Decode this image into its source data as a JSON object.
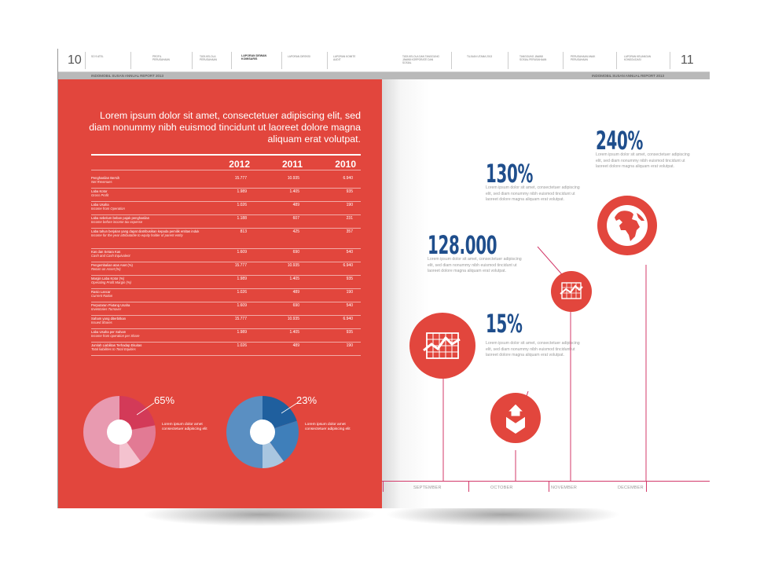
{
  "left_page": {
    "page_number": "10",
    "nav": [
      "SO 9 ATEL",
      "PROFIL PERUSAHAAN",
      "TATA KELOLA PERUSAHAAN",
      "LAPORAN DEWAN KOMISARIS",
      "LAPORAN DIREKSI",
      "LAPORAN KOMITE AUDIT"
    ],
    "band_text": "INDOMOBIL SUSAN ANNUAL REPORT 2013",
    "intro": "Lorem ipsum dolor sit amet, consectetuer adipiscing elit, sed diam nonummy nibh euismod tincidunt ut laoreet dolore magna aliquam erat volutpat.",
    "table": {
      "years": [
        "2012",
        "2011",
        "2010"
      ],
      "rows": [
        {
          "label": "Penghasilan Bersih",
          "sub": "Net Revenues",
          "v": [
            "15.777",
            "10.935",
            "6.940"
          ]
        },
        {
          "label": "Laba Kotor",
          "sub": "Gross Profit",
          "v": [
            "1.989",
            "1.405",
            "935"
          ]
        },
        {
          "label": "Laba Usaha",
          "sub": "Income from Operation",
          "v": [
            "1.026",
            "489",
            "190"
          ]
        },
        {
          "label": "Laba sebelum beban pajak penghasilan",
          "sub": "Income before income tax expense",
          "v": [
            "1.188",
            "607",
            "231"
          ]
        },
        {
          "label": "Laba tahun berjalan yang dapat diatribusikan kepada pemilik entitas induk",
          "sub": "Income for the year attributable to equity holder of parent entity",
          "v": [
            "813",
            "425",
            "357"
          ]
        },
        {
          "label": "Kas dan Setara Kas",
          "sub": "Cash and Cash Equivalent",
          "v": [
            "1.609",
            "690",
            "540"
          ]
        },
        {
          "label": "Pengembalian atas Aset (%)",
          "sub": "Return on Asset (%)",
          "v": [
            "15.777",
            "10.935",
            "6.940"
          ]
        },
        {
          "label": "Margin Laba Kotor (%)",
          "sub": "Operating Profit Margin (%)",
          "v": [
            "1.989",
            "1.405",
            "935"
          ]
        },
        {
          "label": "Rasio Lancar",
          "sub": "Current Ration",
          "v": [
            "1.026",
            "489",
            "190"
          ]
        },
        {
          "label": "Perputaran Piutang Usaha",
          "sub": "Inventories Turnover",
          "v": [
            "1.609",
            "690",
            "540"
          ]
        },
        {
          "label": "Saham yang diterbitkan",
          "sub": "Issued Shares",
          "v": [
            "15.777",
            "10.935",
            "6.940"
          ]
        },
        {
          "label": "Laba Usaha per Saham",
          "sub": "Income from operation per Share",
          "v": [
            "1.989",
            "1.405",
            "935"
          ]
        },
        {
          "label": "Jumlah Liabilitas Terhadap Ekuitas",
          "sub": "Total liabilities to Total Equities",
          "v": [
            "1.026",
            "489",
            "190"
          ]
        }
      ]
    },
    "donuts": [
      {
        "percent": "65%",
        "note": "Lorem ipsum dolor amet consectetuer adipiscing elit",
        "colors": [
          "#d33a58",
          "#e27a94",
          "#f4c2cf",
          "#e89ab0"
        ]
      },
      {
        "percent": "23%",
        "note": "Lorem ipsum dolor amet consectetuer adipiscing elit",
        "colors": [
          "#1f5f9e",
          "#3f7fba",
          "#a9c6e0",
          "#5a8fc2"
        ]
      }
    ]
  },
  "right_page": {
    "page_number": "11",
    "nav": [
      "TATA KELOLA DAN TANGGUNG JAWAB KORPORATE DAN SOSIAL",
      "TUJUAN UTAMA 2013",
      "TANGGUNG JAWAB SOSIAL PERUSAHAAN",
      "PERUSAHAAN ANAK PERUSAHAAN",
      "LAPORAN KEUANGAN KONSOLIDASI"
    ],
    "band_text": "INDOMOBIL SUSAN ANNUAL REPORT 2013",
    "stats": [
      {
        "value": "240%",
        "desc": "Lorem ipsum dolor sit amet, consectetuer adipiscing elit, sed diam nonummy nibh euismod tincidunt ut laoreet dolore magna aliquam erat volutpat."
      },
      {
        "value": "130%",
        "desc": "Lorem ipsum dolor sit amet, consectetuer adipiscing elit, sed diam nonummy nibh euismod tincidunt ut laoreet dolore magna aliquam erat volutpat."
      },
      {
        "value": "128.000",
        "desc": "Lorem ipsum dolor sit amet, consectetuer adipiscing elit, sed diam nonummy nibh euismod tincidunt ut laoreet dolore magna aliquam erat volutpat."
      },
      {
        "value": "15%",
        "desc": "Lorem ipsum dolor sit amet, consectetuer adipiscing elit, sed diam nonummy nibh euismod tincidunt ut laoreet dolore magna aliquam erat volutpat."
      }
    ],
    "months": [
      "SEPTEMBER",
      "OCTOBER",
      "NOVEMBER",
      "DECEMBER"
    ],
    "icons": [
      "chart-grid-icon",
      "chart-grid-icon",
      "globe-icon",
      "box-arrow-icon"
    ],
    "accent": "#e2463d",
    "stat_color": "#1f4e8c",
    "line_color": "#d33a6a"
  }
}
